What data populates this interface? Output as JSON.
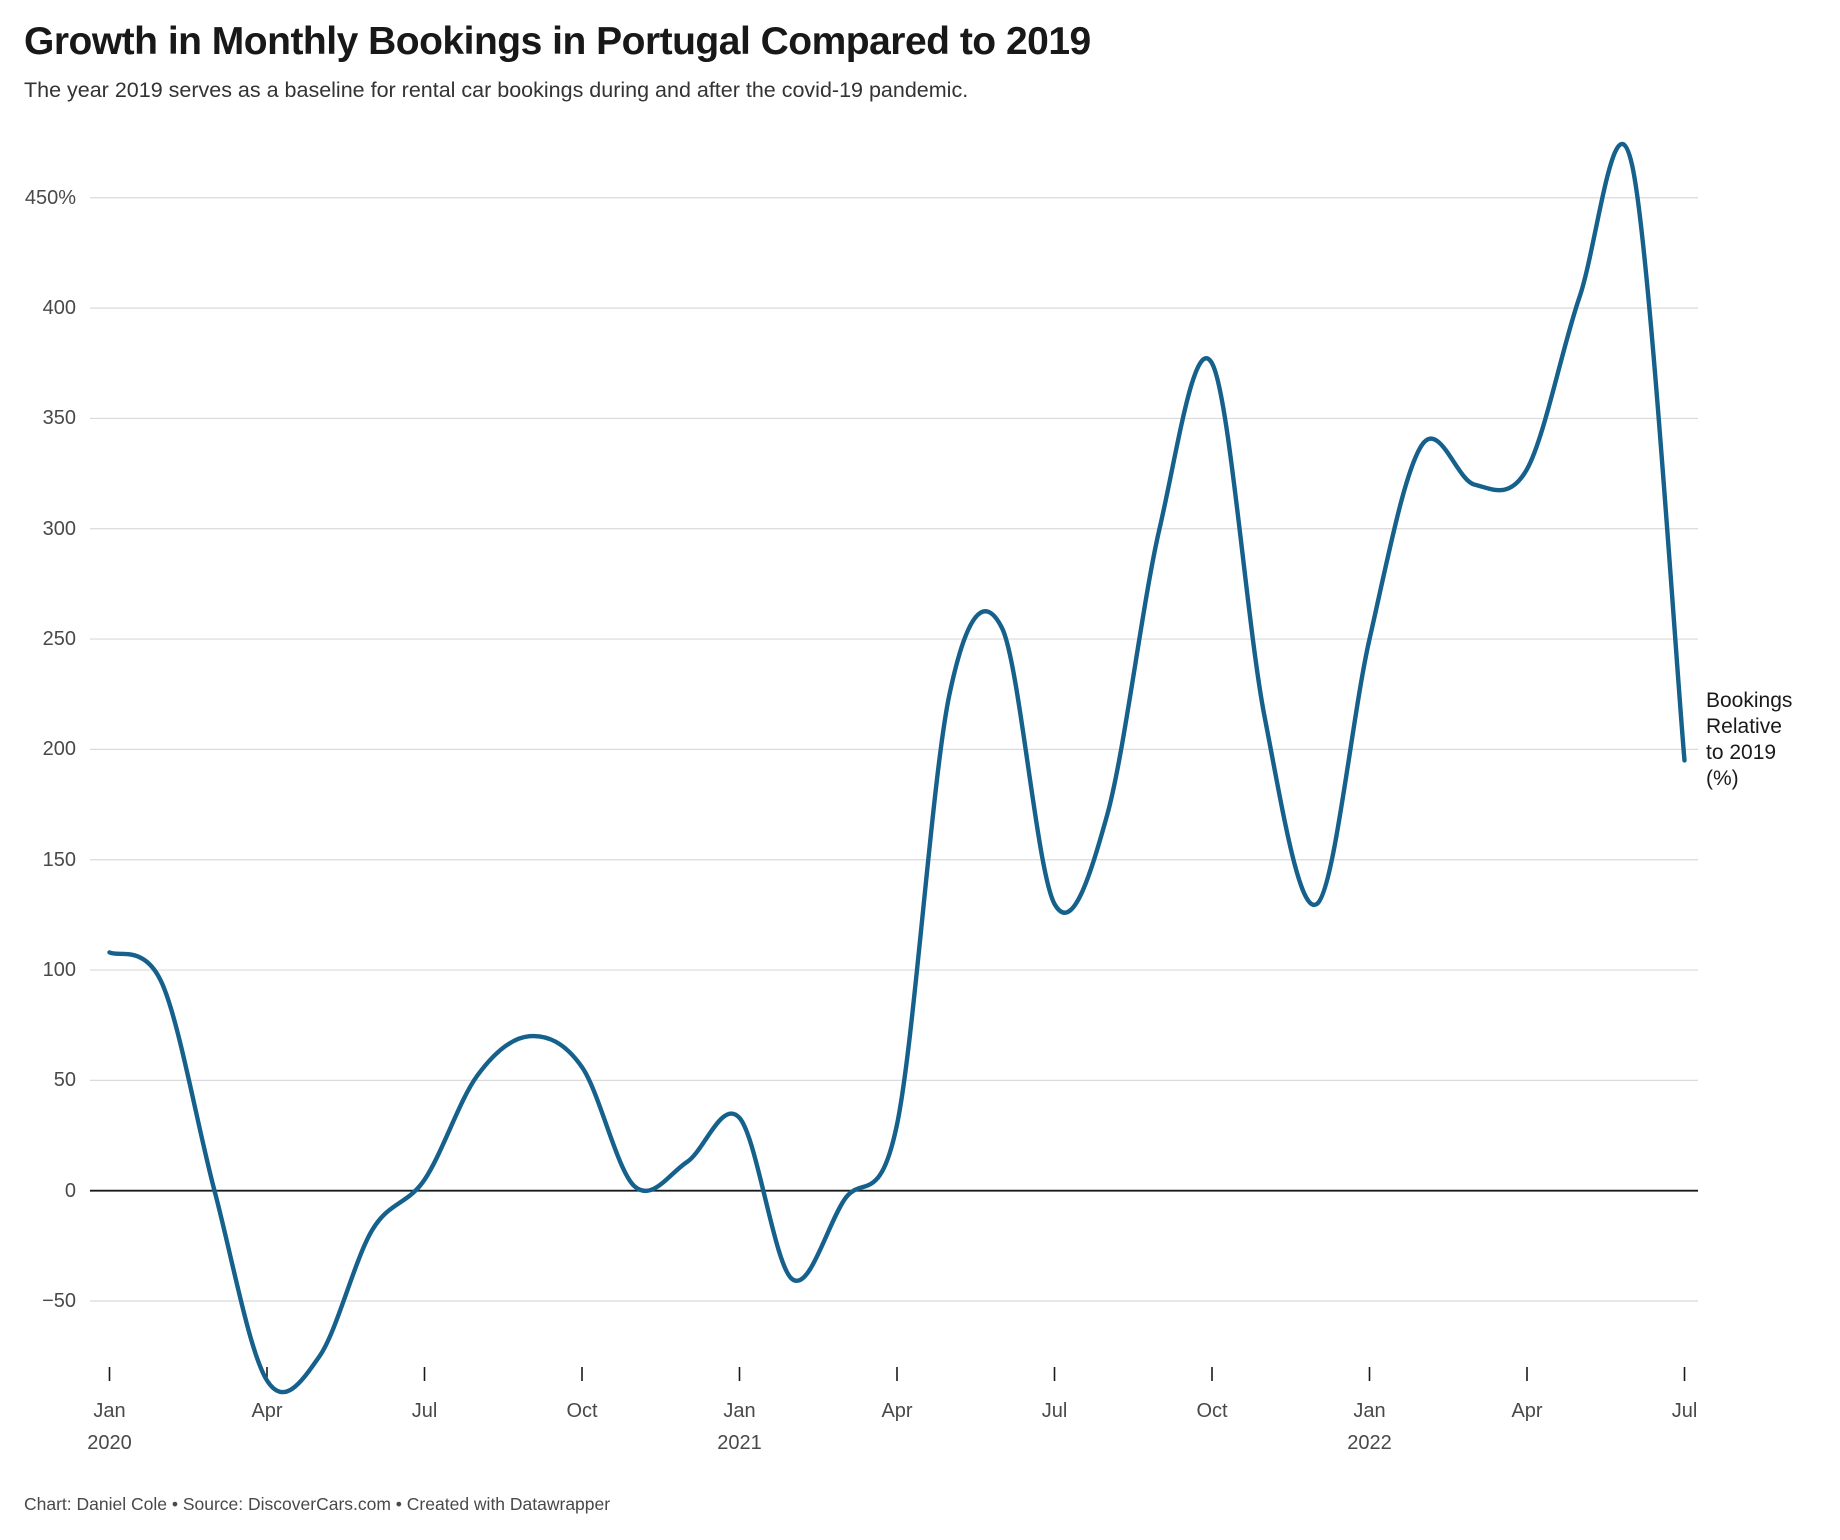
{
  "header": {
    "title": "Growth in Monthly Bookings in Portugal Compared to 2019",
    "subtitle": "The year 2019 serves as a baseline for rental car bookings during and after the covid-19 pandemic."
  },
  "annotation": {
    "lines": [
      "Bookings",
      "Relative",
      "to 2019",
      "(%)"
    ]
  },
  "footer": {
    "byline": "Chart: Daniel Cole • Source: DiscoverCars.com • Created with Datawrapper"
  },
  "colors": {
    "line": "#15618c",
    "grid": "#dadada",
    "zero_line": "#1a1a1a",
    "tick": "#1a1a1a",
    "text_gray": "#494949",
    "text_dark": "#1a1a1a"
  },
  "chart_data": {
    "type": "line",
    "title": "Growth in Monthly Bookings in Portugal Compared to 2019",
    "subtitle": "The year 2019 serves as a baseline for rental car bookings during and after the covid-19 pandemic.",
    "series_label": "Bookings Relative to 2019 (%)",
    "xlabel": "",
    "ylabel": "Bookings Relative to 2019 (%)",
    "ylim": [
      -95,
      475
    ],
    "grid": "horizontal",
    "baseline_zero": true,
    "legend_position": "right-of-line-end",
    "interpolation": "smooth (catmull-rom)",
    "points": [
      {
        "m": "Jan 2020",
        "v": 108
      },
      {
        "m": "Feb 2020",
        "v": 94
      },
      {
        "m": "Mar 2020",
        "v": 0
      },
      {
        "m": "Apr 2020",
        "v": -86
      },
      {
        "m": "May 2020",
        "v": -75
      },
      {
        "m": "Jun 2020",
        "v": -18
      },
      {
        "m": "Jul 2020",
        "v": 5
      },
      {
        "m": "Aug 2020",
        "v": 52
      },
      {
        "m": "Sep 2020",
        "v": 70
      },
      {
        "m": "Oct 2020",
        "v": 56
      },
      {
        "m": "Nov 2020",
        "v": 2
      },
      {
        "m": "Dec 2020",
        "v": 13
      },
      {
        "m": "Jan 2021",
        "v": 33
      },
      {
        "m": "Feb 2021",
        "v": -40
      },
      {
        "m": "Mar 2021",
        "v": -4
      },
      {
        "m": "Apr 2021",
        "v": 30
      },
      {
        "m": "May 2021",
        "v": 225
      },
      {
        "m": "Jun 2021",
        "v": 255
      },
      {
        "m": "Jul 2021",
        "v": 130
      },
      {
        "m": "Aug 2021",
        "v": 170
      },
      {
        "m": "Sep 2021",
        "v": 300
      },
      {
        "m": "Oct 2021",
        "v": 375
      },
      {
        "m": "Nov 2021",
        "v": 215
      },
      {
        "m": "Dec 2021",
        "v": 130
      },
      {
        "m": "Jan 2022",
        "v": 250
      },
      {
        "m": "Feb 2022",
        "v": 338
      },
      {
        "m": "Mar 2022",
        "v": 320
      },
      {
        "m": "Apr 2022",
        "v": 327
      },
      {
        "m": "May 2022",
        "v": 405
      },
      {
        "m": "Jun 2022",
        "v": 465
      },
      {
        "m": "Jul 2022",
        "v": 195
      }
    ],
    "y_ticks": [
      {
        "value": 450,
        "label": "450%"
      },
      {
        "value": 400,
        "label": "400"
      },
      {
        "value": 350,
        "label": "350"
      },
      {
        "value": 300,
        "label": "300"
      },
      {
        "value": 250,
        "label": "250"
      },
      {
        "value": 200,
        "label": "200"
      },
      {
        "value": 150,
        "label": "150"
      },
      {
        "value": 100,
        "label": "100"
      },
      {
        "value": 50,
        "label": "50"
      },
      {
        "value": 0,
        "label": "0"
      },
      {
        "value": -50,
        "label": "−50"
      }
    ],
    "x_ticks": [
      {
        "index": 0,
        "label": "Jan",
        "year": "2020"
      },
      {
        "index": 3,
        "label": "Apr"
      },
      {
        "index": 6,
        "label": "Jul"
      },
      {
        "index": 9,
        "label": "Oct"
      },
      {
        "index": 12,
        "label": "Jan",
        "year": "2021"
      },
      {
        "index": 15,
        "label": "Apr"
      },
      {
        "index": 18,
        "label": "Jul"
      },
      {
        "index": 21,
        "label": "Oct"
      },
      {
        "index": 24,
        "label": "Jan",
        "year": "2022"
      },
      {
        "index": 27,
        "label": "Apr"
      },
      {
        "index": 30,
        "label": "Jul"
      }
    ]
  }
}
